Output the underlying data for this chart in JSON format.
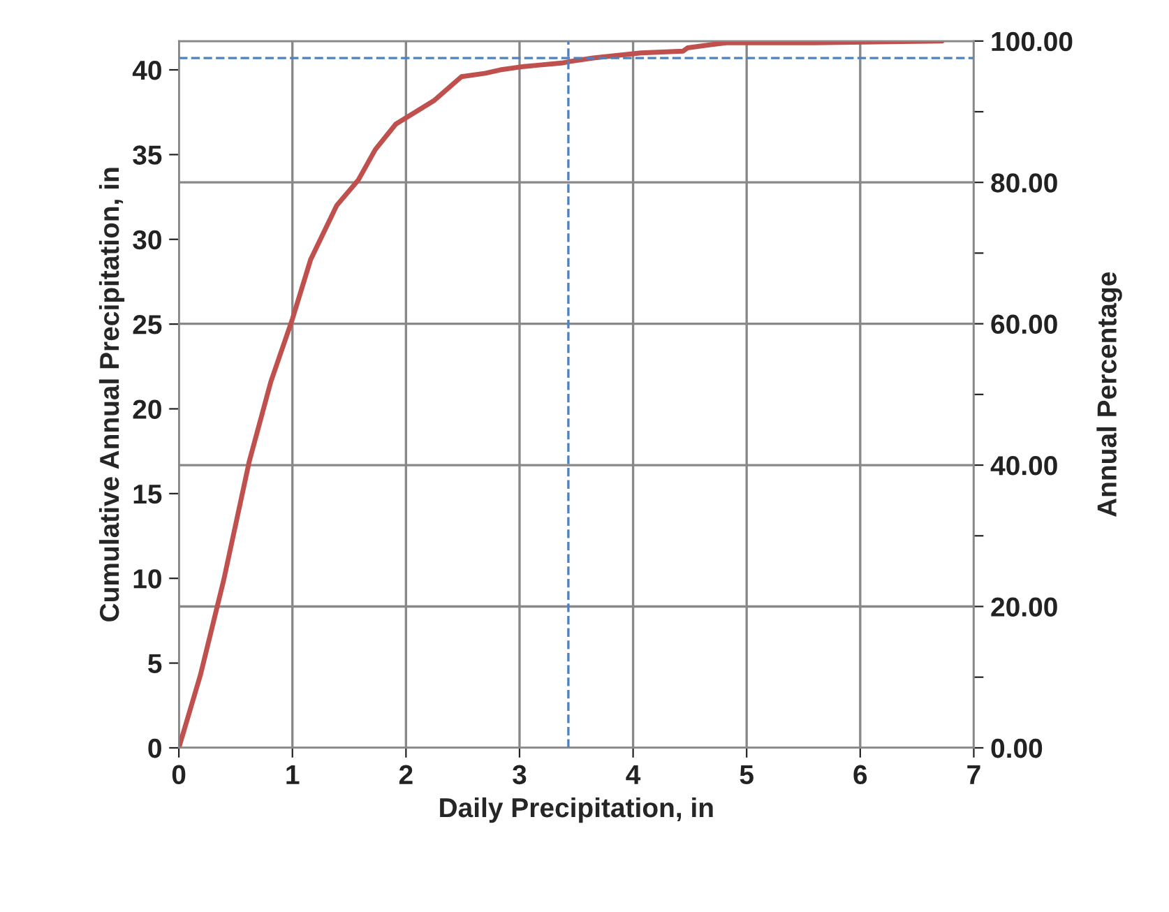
{
  "chart_data": {
    "type": "line",
    "xlabel": "Daily Precipitation, in",
    "ylabel": "Cumulative Annual Precipitation, in",
    "y2label": "Annual Percentage",
    "x": [
      0,
      0.19,
      0.395,
      0.62,
      0.81,
      1.0,
      1.16,
      1.39,
      1.58,
      1.73,
      1.91,
      2.08,
      2.25,
      2.49,
      2.7,
      2.83,
      3.04,
      3.37,
      3.45,
      3.65,
      4.07,
      4.44,
      4.48,
      4.82,
      5.6,
      6.72
    ],
    "series": [
      {
        "color": "#c0504d",
        "values": [
          0,
          4.3,
          9.9,
          16.9,
          21.6,
          25.3,
          28.8,
          32.0,
          33.5,
          35.3,
          36.8,
          37.5,
          38.2,
          39.6,
          39.8,
          40.0,
          40.2,
          40.4,
          40.5,
          40.7,
          41.0,
          41.1,
          41.3,
          41.6,
          41.6,
          41.7
        ]
      }
    ],
    "xlim": [
      0,
      7
    ],
    "xticks": [
      0,
      1,
      2,
      3,
      4,
      5,
      6,
      7
    ],
    "ylim": [
      0,
      41.7
    ],
    "yticks": [
      0,
      5,
      10,
      15,
      20,
      25,
      30,
      35,
      40
    ],
    "y2lim": [
      0,
      100
    ],
    "y2ticks": [
      {
        "value": 0,
        "label": "0.00"
      },
      {
        "value": 10,
        "label": null
      },
      {
        "value": 20,
        "label": "20.00"
      },
      {
        "value": 30,
        "label": null
      },
      {
        "value": 40,
        "label": "40.00"
      },
      {
        "value": 50,
        "label": null
      },
      {
        "value": 60,
        "label": "60.00"
      },
      {
        "value": 70,
        "label": null
      },
      {
        "value": 80,
        "label": "80.00"
      },
      {
        "value": 90,
        "label": null
      },
      {
        "value": 100,
        "label": "100.00"
      }
    ],
    "ref_lines": [
      {
        "axis": "x",
        "value": 3.43,
        "color": "#4f81bd",
        "line_style": "dashed"
      },
      {
        "axis": "y",
        "value": 40.7,
        "color": "#4f81bd",
        "line_style": "dashed"
      }
    ],
    "grid": true,
    "marker": "none",
    "line_style": "solid"
  }
}
